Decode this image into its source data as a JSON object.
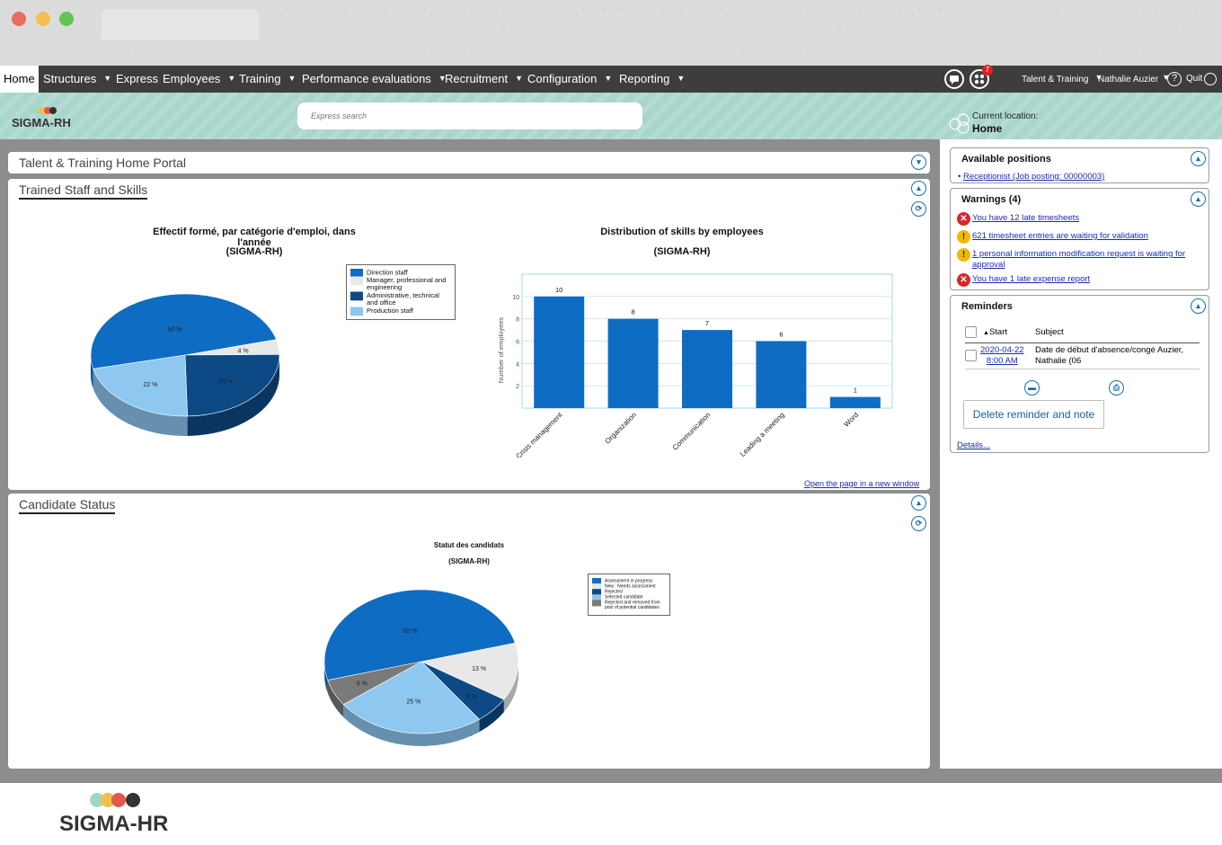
{
  "menu": {
    "items": [
      "Home",
      "Structures",
      "Express",
      "Employees",
      "Training",
      "Performance evaluations",
      "Recruitment",
      "Configuration",
      "Reporting"
    ],
    "notification_count": "7",
    "module": "Talent & Training",
    "user": "Nathalie Auzier",
    "help": "?",
    "quit": "Quit"
  },
  "header": {
    "logo_text": "SIGMA-RH",
    "search_placeholder": "Express search",
    "location_label": "Current location:",
    "location_value": "Home"
  },
  "portal": {
    "title": "Talent & Training Home Portal"
  },
  "trained_staff": {
    "title": "Trained Staff and Skills",
    "open_link": "Open the page in a new window"
  },
  "candidate": {
    "title": "Candidate Status"
  },
  "chart_data": [
    {
      "type": "pie",
      "title": "Effectif formé, par catégorie d'emploi, dans l'année",
      "subtitle": "(SIGMA-RH)",
      "labels": [
        "Direction staff",
        "Manager, professional and engineering",
        "Administrative, technical and office",
        "Production staff"
      ],
      "values": [
        50,
        4,
        25,
        22
      ],
      "value_labels": [
        "50 %",
        "4 %",
        "25 %",
        "22 %"
      ],
      "colors": [
        "#0e6cc2",
        "#e8e8e8",
        "#0d4a85",
        "#8ec8f0"
      ],
      "legend": "right"
    },
    {
      "type": "bar",
      "title": "Distribution of skills by employees",
      "subtitle": "(SIGMA-RH)",
      "categories": [
        "Crisis management",
        "Organization",
        "Communication",
        "Leading a meeting",
        "Word"
      ],
      "values": [
        10,
        8,
        7,
        6,
        1
      ],
      "ylabel": "Number of employees",
      "yticks": [
        "2",
        "4",
        "6",
        "8",
        "10"
      ],
      "ylim": [
        0,
        12
      ],
      "color": "#0e6cc2",
      "grid": true
    },
    {
      "type": "pie",
      "title": "Statut des candidats",
      "subtitle": "(SIGMA-RH)",
      "labels": [
        "Assessment in progress",
        "New : Needs assessment",
        "Rejected",
        "Selected candidate",
        "Rejected and removed from pool of potential candidates"
      ],
      "values": [
        50,
        13,
        6,
        25,
        6
      ],
      "value_labels": [
        "50 %",
        "13 %",
        "6 %",
        "25 %",
        "6 %"
      ],
      "colors": [
        "#0e6cc2",
        "#e8e8e8",
        "#0d4a85",
        "#8ec8f0",
        "#7a7a7a"
      ],
      "legend": "right"
    }
  ],
  "sidebar": {
    "positions": {
      "title": "Available positions",
      "items": [
        "Receptionist (Job posting: 00000003)"
      ]
    },
    "warnings": {
      "title": "Warnings (4)",
      "items": [
        {
          "type": "error",
          "text": "You have 12 late timesheets"
        },
        {
          "type": "alert",
          "text": "621 timesheet entries are waiting for validation"
        },
        {
          "type": "alert",
          "text": "1 personal information modification request is waiting for approval"
        },
        {
          "type": "error",
          "text": "You have 1 late expense report"
        }
      ]
    },
    "reminders": {
      "title": "Reminders",
      "col_start": "Start",
      "col_subject": "Subject",
      "row_date": "2020-04-22",
      "row_time": "8:00 AM",
      "row_subject": "Date de début d'absence/congé Auzier, Nathalie (06",
      "delete_button": "Delete reminder and note",
      "details": "Details..."
    }
  },
  "footer": {
    "logo_text": "SIGMA-HR"
  }
}
